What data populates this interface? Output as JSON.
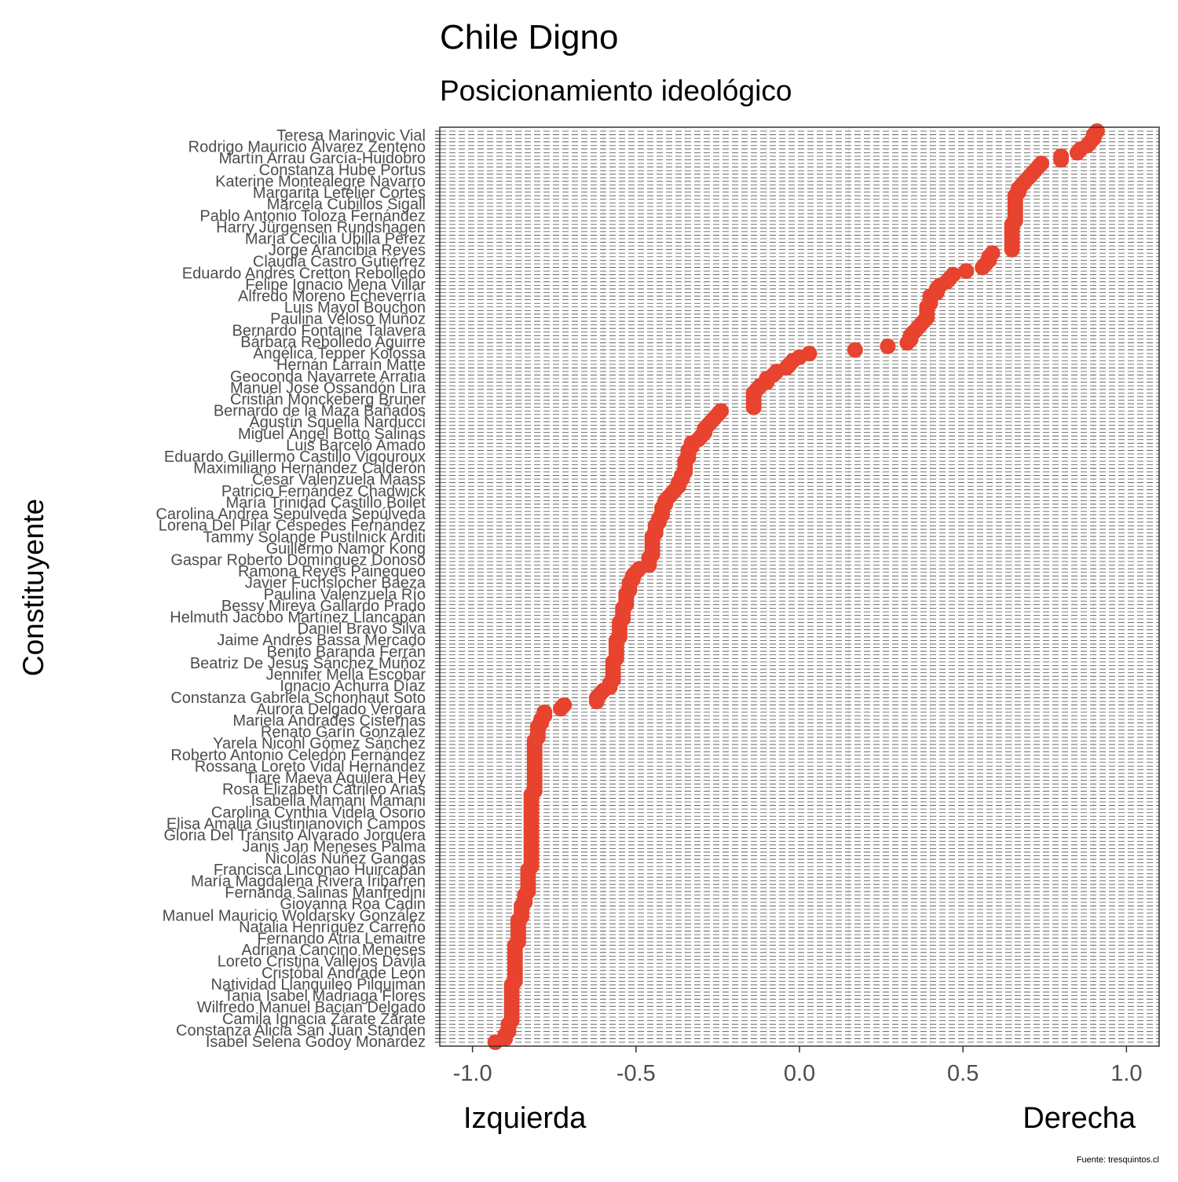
{
  "chart_data": {
    "type": "scatter",
    "title": "Chile Digno",
    "subtitle": "Posicionamiento ideológico",
    "xlabel": "",
    "ylabel": "Constituyente",
    "x_left_label": "Izquierda",
    "x_right_label": "Derecha",
    "caption": "Fuente: tresquintos.cl",
    "xlim": [
      -1.1,
      1.1
    ],
    "x_ticks": [
      -1.0,
      -0.5,
      0.0,
      0.5,
      1.0
    ],
    "x_tick_labels": [
      "-1.0",
      "-0.5",
      "0.0",
      "0.5",
      "1.0"
    ],
    "grid": true,
    "point_color": "#E8432F",
    "labels_top_to_bottom": [
      "Teresa Marinovic Vial",
      "Rodrigo Mauricio Álvarez Zenteno",
      "Martín Arrau García-Huidobro",
      "Constanza Hube Portus",
      "Katerine Montealegre Navarro",
      "Margarita Letelier Cortés",
      "Marcela Cubillos Sigall",
      "Pablo Antonio Toloza Fernández",
      "Harry Jürgensen Rundshagen",
      "María Cecilia Ubilla Pérez",
      "Jorge Arancibia Reyes",
      "Claudia Castro Gutiérrez",
      "Eduardo Andrés Cretton Rebolledo",
      "Felipe Ignacio Mena Villar",
      "Alfredo Moreno Echeverría",
      "Luis Mayol Bouchon",
      "Paulina Veloso Muñoz",
      "Bernardo Fontaine Talavera",
      "Bárbara Rebolledo Aguirre",
      "Angélica Tepper Kolossa",
      "Hernán Larraín Matte",
      "Geoconda Navarrete Arratia",
      "Manuel José Ossandón Lira",
      "Cristián Monckeberg Bruner",
      "Bernardo de la Maza Bañados",
      "Agustín Squella Narducci",
      "Miguel Ángel Botto Salinas",
      "Luis Barceló Amado",
      "Eduardo Guillermo Castillo Vigouroux",
      "Maximiliano Hernández Calderón",
      "César Valenzuela Maass",
      "Patricio Fernández Chadwick",
      "María Trinidad Castillo Boilet",
      "Carolina Andrea Sepúlveda Sepúlveda",
      "Lorena Del Pilar Céspedes Fernández",
      "Tammy Solange Pustilnick Arditi",
      "Guillermo Namor Kong",
      "Gaspar Roberto Domínguez Donoso",
      "Ramona Reyes Painequeo",
      "Javier Fuchslocher Baeza",
      "Paulina Valenzuela Río",
      "Bessy Mireya Gallardo Prado",
      "Helmuth Jacobo Martínez Llancapán",
      "Daniel Bravo Silva",
      "Jaime Andrés Bassa Mercado",
      "Benito Baranda Ferrán",
      "Beatriz De Jesús Sánchez Muñoz",
      "Jennifer Mella Escobar",
      "Ignacio Achurra Díaz",
      "Constanza Gabriela Schonhaut Soto",
      "Aurora Delgado Vergara",
      "Mariela Andrades Cisternas",
      "Renato Garín González",
      "Yarela Nicohl Gómez Sánchez",
      "Roberto Antonio Celedón Fernández",
      "Rossana Loreto Vidal Hernández",
      "Tiare Maeva Aguilera Hey",
      "Rosa Elizabeth Catrileo Arias",
      "Isabella Mamani Mamani",
      "Carolina Cynthia Videla Osorio",
      "Elisa Amalia Giustinianovich Campos",
      "Gloria Del Tránsito Alvarado Jorquera",
      "Janis Jan Meneses Palma",
      "Nicolás Núñez Gangas",
      "Francisca Linconao Huircapán",
      "María Magdalena Rivera Iribarren",
      "Fernanda Salinas Manfredini",
      "Giovanna Roa Cadin",
      "Manuel Mauricio Woldarsky González",
      "Natalia Henríquez Carreño",
      "Fernando Atria Lemaitre",
      "Adriana Cancino Meneses",
      "Loreto Cristina Vallejos Dávila",
      "Cristóbal Andrade León",
      "Natividad Llanquileo Pilquimán",
      "Tania Isabel Madriaga Flores",
      "Wilfredo Manuel Bacian Delgado",
      "Camila Ignacia Zárate Zárate",
      "Constanza Alicia San Juan Standen",
      "Isabel Selena Godoy Monárdez"
    ],
    "x": [
      0.91,
      0.9,
      0.9,
      0.89,
      0.88,
      0.86,
      0.85,
      0.8,
      0.8,
      0.74,
      0.73,
      0.72,
      0.71,
      0.7,
      0.69,
      0.68,
      0.67,
      0.67,
      0.66,
      0.66,
      0.66,
      0.66,
      0.66,
      0.66,
      0.66,
      0.66,
      0.65,
      0.65,
      0.65,
      0.65,
      0.65,
      0.65,
      0.65,
      0.65,
      0.59,
      0.58,
      0.58,
      0.57,
      0.56,
      0.51,
      0.47,
      0.46,
      0.45,
      0.43,
      0.42,
      0.42,
      0.4,
      0.4,
      0.4,
      0.39,
      0.39,
      0.39,
      0.39,
      0.38,
      0.37,
      0.36,
      0.35,
      0.34,
      0.34,
      0.33,
      0.27,
      0.17,
      0.03,
      0.0,
      -0.02,
      -0.03,
      -0.04,
      -0.07,
      -0.08,
      -0.1,
      -0.1,
      -0.12,
      -0.13,
      -0.14,
      -0.14,
      -0.14,
      -0.14,
      -0.14,
      -0.24,
      -0.25,
      -0.26,
      -0.27,
      -0.28,
      -0.29,
      -0.29,
      -0.3,
      -0.31,
      -0.33,
      -0.33,
      -0.34,
      -0.34,
      -0.34,
      -0.35,
      -0.35,
      -0.35,
      -0.35,
      -0.36,
      -0.36,
      -0.37,
      -0.37,
      -0.38,
      -0.39,
      -0.4,
      -0.41,
      -0.41,
      -0.42,
      -0.42,
      -0.42,
      -0.43,
      -0.43,
      -0.44,
      -0.44,
      -0.44,
      -0.45,
      -0.45,
      -0.45,
      -0.45,
      -0.45,
      -0.45,
      -0.46,
      -0.46,
      -0.46,
      -0.49,
      -0.5,
      -0.51,
      -0.51,
      -0.52,
      -0.52,
      -0.52,
      -0.53,
      -0.53,
      -0.53,
      -0.53,
      -0.54,
      -0.54,
      -0.54,
      -0.54,
      -0.55,
      -0.55,
      -0.55,
      -0.55,
      -0.55,
      -0.56,
      -0.56,
      -0.56,
      -0.56,
      -0.56,
      -0.56,
      -0.57,
      -0.57,
      -0.57,
      -0.57,
      -0.57,
      -0.57,
      -0.58,
      -0.58,
      -0.6,
      -0.61,
      -0.62,
      -0.62,
      -0.72,
      -0.73,
      -0.78,
      -0.78,
      -0.79,
      -0.79,
      -0.8,
      -0.8,
      -0.8,
      -0.8,
      -0.81,
      -0.81,
      -0.81,
      -0.81,
      -0.81,
      -0.81,
      -0.81,
      -0.81,
      -0.81,
      -0.81,
      -0.81,
      -0.81,
      -0.81,
      -0.81,
      -0.81,
      -0.82,
      -0.82,
      -0.82,
      -0.82,
      -0.82,
      -0.82,
      -0.82,
      -0.82,
      -0.82,
      -0.82,
      -0.82,
      -0.82,
      -0.82,
      -0.82,
      -0.82,
      -0.82,
      -0.82,
      -0.82,
      -0.82,
      -0.82,
      -0.82,
      -0.83,
      -0.83,
      -0.83,
      -0.83,
      -0.83,
      -0.83,
      -0.83,
      -0.84,
      -0.84,
      -0.84,
      -0.85,
      -0.85,
      -0.85,
      -0.85,
      -0.86,
      -0.86,
      -0.86,
      -0.86,
      -0.86,
      -0.86,
      -0.86,
      -0.87,
      -0.87,
      -0.87,
      -0.87,
      -0.87,
      -0.87,
      -0.87,
      -0.87,
      -0.87,
      -0.87,
      -0.87,
      -0.88,
      -0.88,
      -0.88,
      -0.88,
      -0.88,
      -0.88,
      -0.88,
      -0.88,
      -0.88,
      -0.88,
      -0.88,
      -0.89,
      -0.89,
      -0.89,
      -0.9,
      -0.9,
      -0.93
    ]
  }
}
